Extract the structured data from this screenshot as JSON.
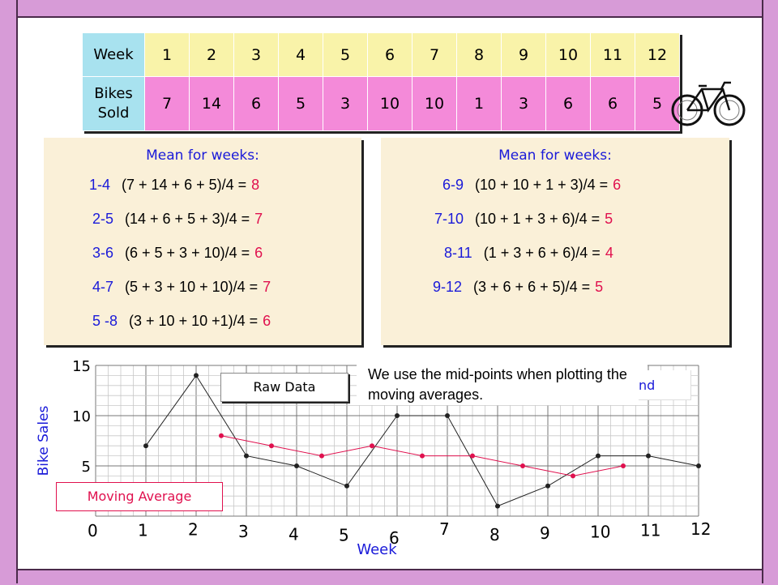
{
  "table": {
    "row1_header": "Week",
    "row2_header_line1": "Bikes",
    "row2_header_line2": "Sold",
    "weeks": [
      "1",
      "2",
      "3",
      "4",
      "5",
      "6",
      "7",
      "8",
      "9",
      "10",
      "11",
      "12"
    ],
    "sales": [
      "7",
      "14",
      "6",
      "5",
      "3",
      "10",
      "10",
      "1",
      "3",
      "6",
      "6",
      "5"
    ]
  },
  "means_left": {
    "title": "Mean for weeks:",
    "rows": [
      {
        "range": "1-4",
        "expr": "(7 + 14 + 6 + 5)/4 =",
        "result": "8"
      },
      {
        "range": "2-5",
        "expr": "(14 + 6 + 5 + 3)/4 =",
        "result": "7"
      },
      {
        "range": "3-6",
        "expr": "(6 + 5 + 3 + 10)/4 =",
        "result": "6"
      },
      {
        "range": "4-7",
        "expr": "(5 + 3 + 10 + 10)/4 =",
        "result": "7"
      },
      {
        "range": "5 -8",
        "expr": "(3 + 10 + 10 +1)/4 =",
        "result": "6"
      }
    ]
  },
  "means_right": {
    "title": "Mean for weeks:",
    "rows": [
      {
        "range": "6-9",
        "expr": "(10 + 10 + 1 + 3)/4 =",
        "result": "6"
      },
      {
        "range": "7-10",
        "expr": "(10 + 1 + 3 + 6)/4 =",
        "result": "5"
      },
      {
        "range": "8-11",
        "expr": "(1 + 3 + 6 + 6)/4 =",
        "result": "4"
      },
      {
        "range": "9-12",
        "expr": "(3 + 6 + 6 + 5)/4 =",
        "result": "5"
      }
    ]
  },
  "labels": {
    "raw_data": "Raw Data",
    "moving_average": "Moving Average",
    "note": "We use the mid-points when plotting the moving averages.",
    "partial_trend": "nd"
  },
  "colors": {
    "raw": "#222222",
    "moving_average": "#e0104e",
    "axis_blue": "#1a1ad9",
    "table_header": "#a8e2ef",
    "row1": "#f9f3a9",
    "row2": "#f48ad9",
    "frame": "#d79bd7"
  },
  "chart_data": {
    "type": "line",
    "xlabel": "Week",
    "ylabel": "Bike Sales",
    "xlim": [
      0,
      12
    ],
    "ylim": [
      0,
      15
    ],
    "x_ticks": [
      "0",
      "1",
      "2",
      "3",
      "4",
      "5",
      "6",
      "7",
      "8",
      "9",
      "10",
      "11",
      "12"
    ],
    "y_ticks": [
      "5",
      "10",
      "15"
    ],
    "grid": true,
    "series": [
      {
        "name": "Raw Data",
        "x": [
          1,
          2,
          3,
          4,
          5,
          6,
          7,
          8,
          9,
          10,
          11,
          12
        ],
        "y": [
          7,
          14,
          6,
          5,
          3,
          10,
          10,
          1,
          3,
          6,
          6,
          5
        ]
      },
      {
        "name": "Moving Average",
        "x": [
          2.5,
          3.5,
          4.5,
          5.5,
          6.5,
          7.5,
          8.5,
          9.5,
          10.5
        ],
        "y": [
          8,
          7,
          6,
          7,
          6,
          6,
          5,
          4,
          5
        ]
      }
    ]
  }
}
